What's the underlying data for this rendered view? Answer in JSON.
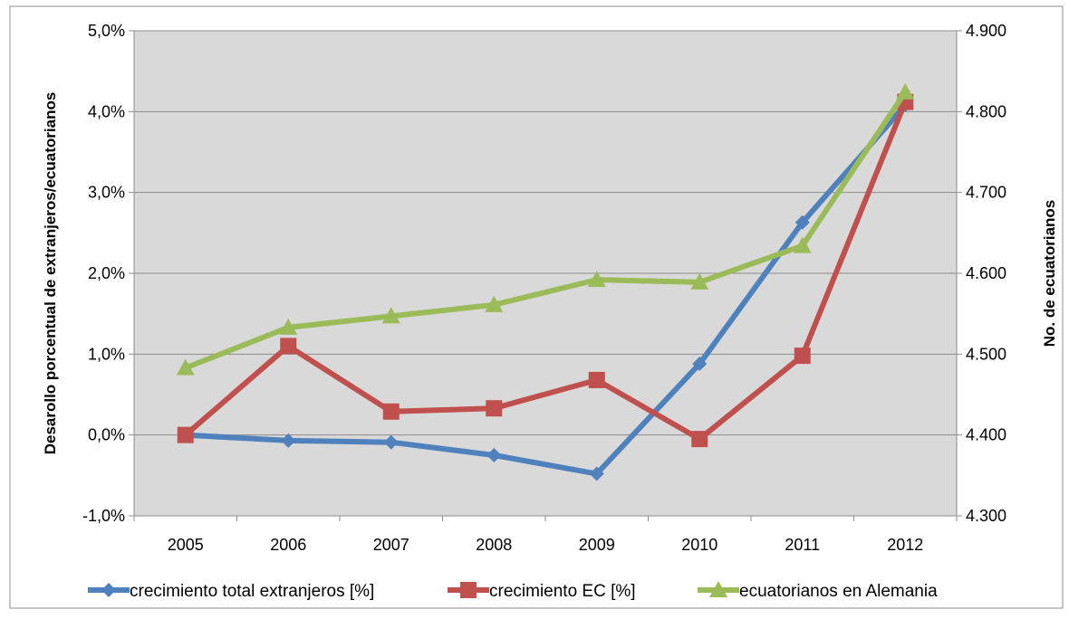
{
  "chart_data": {
    "type": "line",
    "x": [
      "2005",
      "2006",
      "2007",
      "2008",
      "2009",
      "2010",
      "2011",
      "2012"
    ],
    "ylabel": "Desarollo porcentual de extranjeros/ecuatorianos",
    "ylabel_right": "No. de ecuatorianos",
    "ylim": [
      -1.0,
      5.0
    ],
    "ylim_right": [
      4300,
      4900
    ],
    "y_ticks": [
      "-1,0%",
      "0,0%",
      "1,0%",
      "2,0%",
      "3,0%",
      "4,0%",
      "5,0%"
    ],
    "y_ticks_right": [
      "4.300",
      "4.400",
      "4.500",
      "4.600",
      "4.700",
      "4.800",
      "4.900"
    ],
    "grid": true,
    "legend_position": "bottom",
    "plot_background": "#d9d9d9",
    "series": [
      {
        "name": "crecimiento total extranjeros [%]",
        "axis": "left",
        "color": "#4f81bd",
        "marker": "diamond",
        "values": [
          0.0,
          -0.07,
          -0.09,
          -0.25,
          -0.48,
          0.88,
          2.63,
          4.08
        ]
      },
      {
        "name": "crecimiento EC [%]",
        "axis": "left",
        "color": "#c0504d",
        "marker": "square",
        "values": [
          0.0,
          1.1,
          0.29,
          0.33,
          0.68,
          -0.05,
          0.98,
          4.12
        ]
      },
      {
        "name": "ecuatorianos en Alemania",
        "axis": "right",
        "color": "#9bbb59",
        "marker": "triangle",
        "values": [
          4483,
          4533,
          4547,
          4561,
          4592,
          4589,
          4634,
          4824
        ]
      }
    ]
  }
}
